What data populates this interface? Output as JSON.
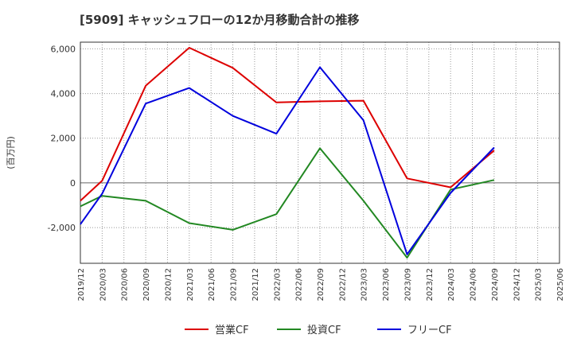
{
  "chart_data": {
    "type": "line",
    "title": "[5909]  キャッシュフローの12か月移動合計の推移",
    "ylabel": "(百万円)",
    "xlabel": "",
    "ylim": [
      -3600,
      6300
    ],
    "yticks": [
      6000,
      4000,
      2000,
      0,
      -2000
    ],
    "ytick_labels": [
      "6,000",
      "4,000",
      "2,000",
      "0",
      "-2,000"
    ],
    "x_tick_labels": [
      "2019/12",
      "2020/03",
      "2020/06",
      "2020/09",
      "2020/12",
      "2021/03",
      "2021/06",
      "2021/09",
      "2021/12",
      "2022/03",
      "2022/06",
      "2022/09",
      "2022/12",
      "2023/03",
      "2023/06",
      "2023/09",
      "2023/12",
      "2024/03",
      "2024/06",
      "2024/09",
      "2024/12",
      "2025/03",
      "2025/06"
    ],
    "grid": true,
    "legend_position": "bottom",
    "series": [
      {
        "name": "営業CF",
        "color": "#dd0000",
        "x": [
          "2019/12",
          "2020/03",
          "2020/09",
          "2021/03",
          "2021/09",
          "2022/03",
          "2022/09",
          "2023/03",
          "2023/09",
          "2024/03",
          "2024/09"
        ],
        "values": [
          -800,
          100,
          4350,
          6050,
          5150,
          3600,
          3650,
          3680,
          200,
          -200,
          1450
        ]
      },
      {
        "name": "投資CF",
        "color": "#228822",
        "x": [
          "2019/12",
          "2020/03",
          "2020/09",
          "2021/03",
          "2021/09",
          "2022/03",
          "2022/09",
          "2023/03",
          "2023/09",
          "2024/03",
          "2024/09"
        ],
        "values": [
          -1050,
          -580,
          -800,
          -1800,
          -2100,
          -1400,
          1550,
          -800,
          -3350,
          -300,
          130
        ]
      },
      {
        "name": "フリーCF",
        "color": "#0000dd",
        "x": [
          "2019/12",
          "2020/03",
          "2020/09",
          "2021/03",
          "2021/09",
          "2022/03",
          "2022/09",
          "2023/03",
          "2023/09",
          "2024/03",
          "2024/09"
        ],
        "values": [
          -1850,
          -480,
          3550,
          4250,
          3000,
          2200,
          5180,
          2800,
          -3200,
          -450,
          1580
        ]
      }
    ]
  }
}
